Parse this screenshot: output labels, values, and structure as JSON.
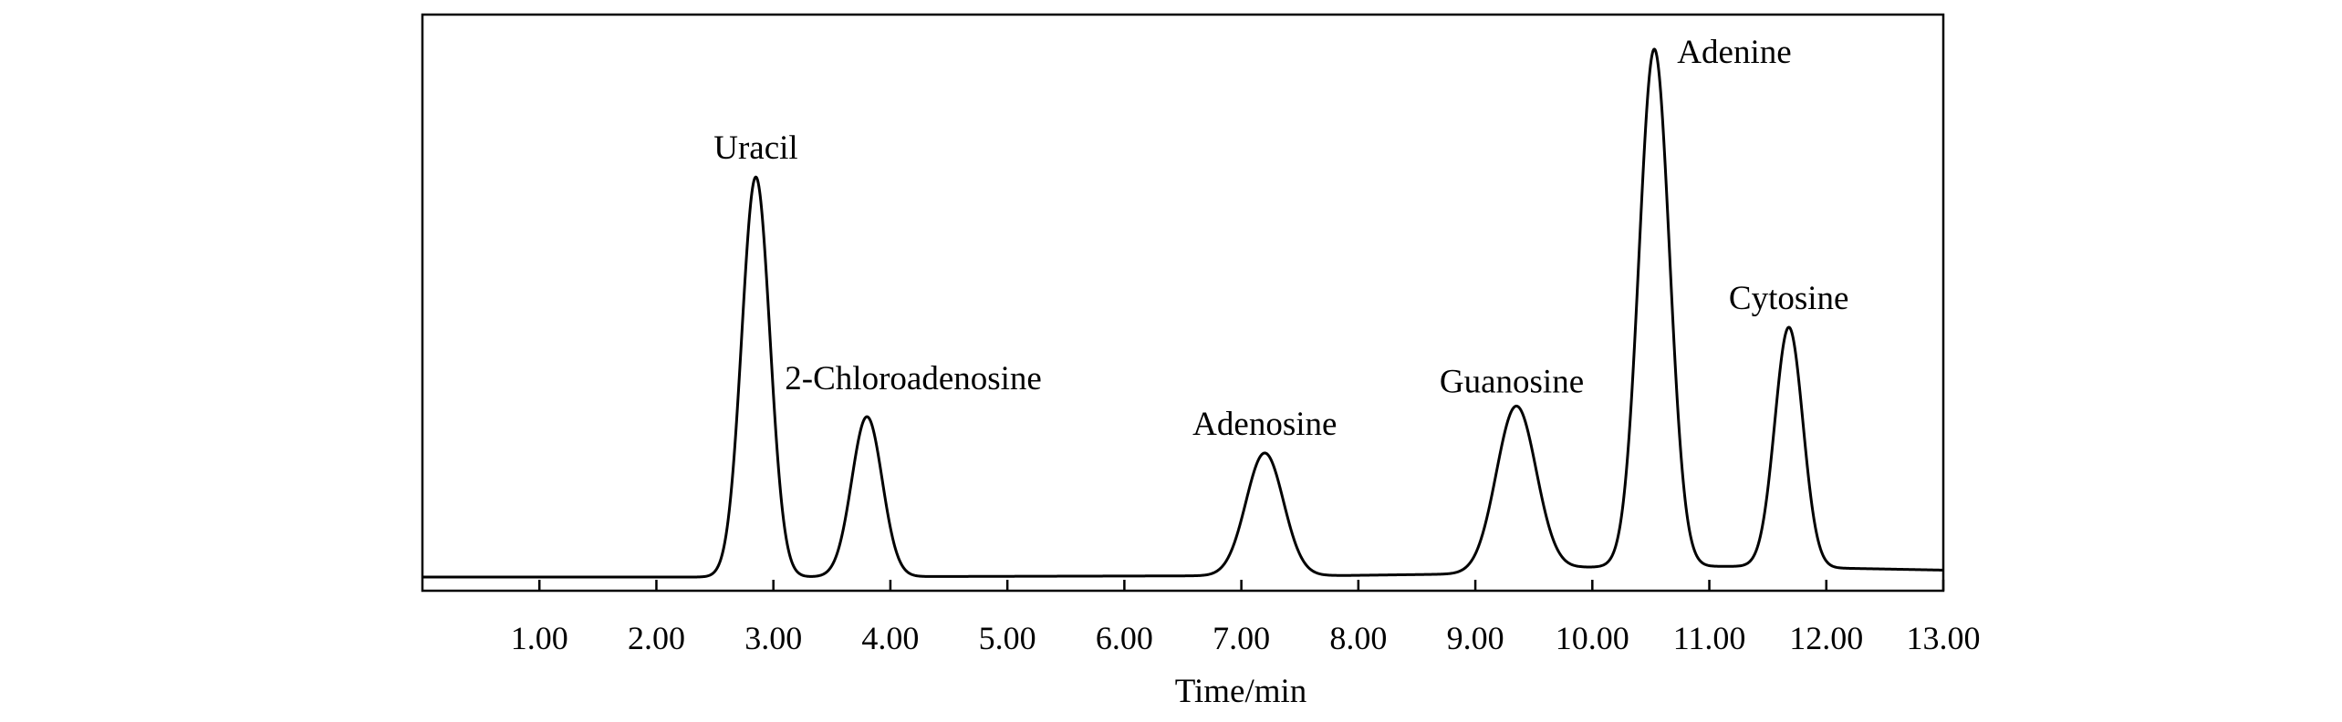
{
  "chart_data": {
    "type": "line",
    "title": "",
    "xlabel": "Time/min",
    "ylabel": "",
    "xlim": [
      0,
      13.0
    ],
    "ylim": [
      0,
      100
    ],
    "grid": false,
    "x_ticks": [
      1.0,
      2.0,
      3.0,
      4.0,
      5.0,
      6.0,
      7.0,
      8.0,
      9.0,
      10.0,
      11.0,
      12.0,
      13.0
    ],
    "x_tick_labels": [
      "1.00",
      "2.00",
      "3.00",
      "4.00",
      "5.00",
      "6.00",
      "7.00",
      "8.00",
      "9.00",
      "10.00",
      "11.00",
      "12.00",
      "13.00"
    ],
    "baseline": [
      {
        "x": 0.0,
        "y": 0.0
      },
      {
        "x": 2.6,
        "y": 0.0
      },
      {
        "x": 7.9,
        "y": 0.3
      },
      {
        "x": 9.0,
        "y": 0.6
      },
      {
        "x": 9.9,
        "y": 1.8
      },
      {
        "x": 10.3,
        "y": 2.0
      },
      {
        "x": 11.3,
        "y": 2.0
      },
      {
        "x": 13.0,
        "y": 1.3
      }
    ],
    "peaks": [
      {
        "label": "Uracil",
        "retention_time": 2.85,
        "height": 75,
        "width": 0.12
      },
      {
        "label": "2-Chloroadenosine",
        "retention_time": 3.8,
        "height": 30,
        "width": 0.13
      },
      {
        "label": "Adenosine",
        "retention_time": 7.2,
        "height": 23,
        "width": 0.16
      },
      {
        "label": "Guanosine",
        "retention_time": 9.35,
        "height": 31,
        "width": 0.17
      },
      {
        "label": "Adenine",
        "retention_time": 10.53,
        "height": 97,
        "width": 0.13
      },
      {
        "label": "Cytosine",
        "retention_time": 11.68,
        "height": 45,
        "width": 0.12
      }
    ]
  }
}
